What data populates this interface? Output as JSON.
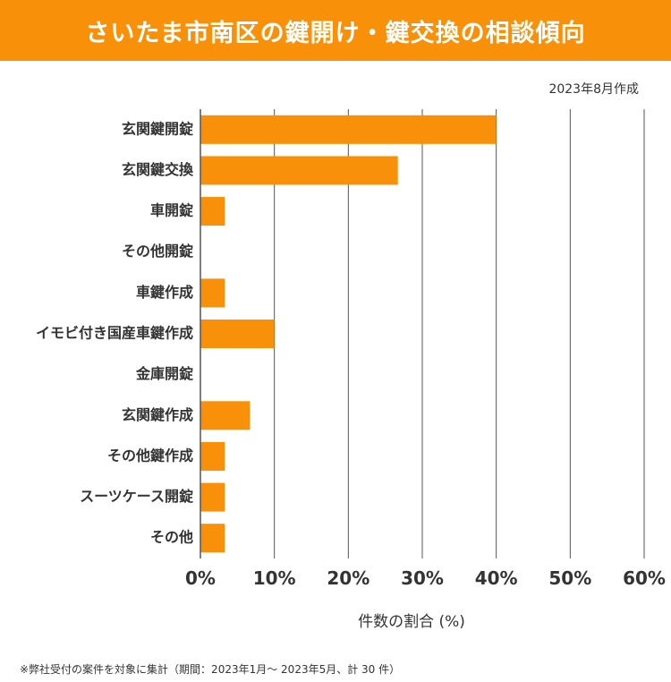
{
  "header": {
    "title": "さいたま市南区の鍵開け・鍵交換の相談傾向"
  },
  "date_note": "2023年8月作成",
  "chart_data": {
    "type": "bar",
    "orientation": "horizontal",
    "title": "さいたま市南区の鍵開け・鍵交換の相談傾向",
    "categories": [
      "玄関鍵開錠",
      "玄関鍵交換",
      "車開錠",
      "その他開錠",
      "車鍵作成",
      "イモビ付き国産車鍵作成",
      "金庫開錠",
      "玄関鍵作成",
      "その他鍵作成",
      "スーツケース開錠",
      "その他"
    ],
    "values": [
      40,
      26.7,
      3.3,
      0,
      3.3,
      10,
      0,
      6.7,
      3.3,
      3.3,
      3.3
    ],
    "xlim": [
      0,
      60
    ],
    "ticks": [
      0,
      10,
      20,
      30,
      40,
      50,
      60
    ],
    "tick_labels": [
      "0%",
      "10%",
      "20%",
      "30%",
      "40%",
      "50%",
      "60%"
    ],
    "xlabel": "件数の割合 (%)",
    "ylabel": "",
    "grid": true,
    "bar_color": "#f8900a"
  },
  "footnote": "※弊社受付の案件を対象に集計（期間：2023年1月～ 2023年5月、計 30 件）"
}
